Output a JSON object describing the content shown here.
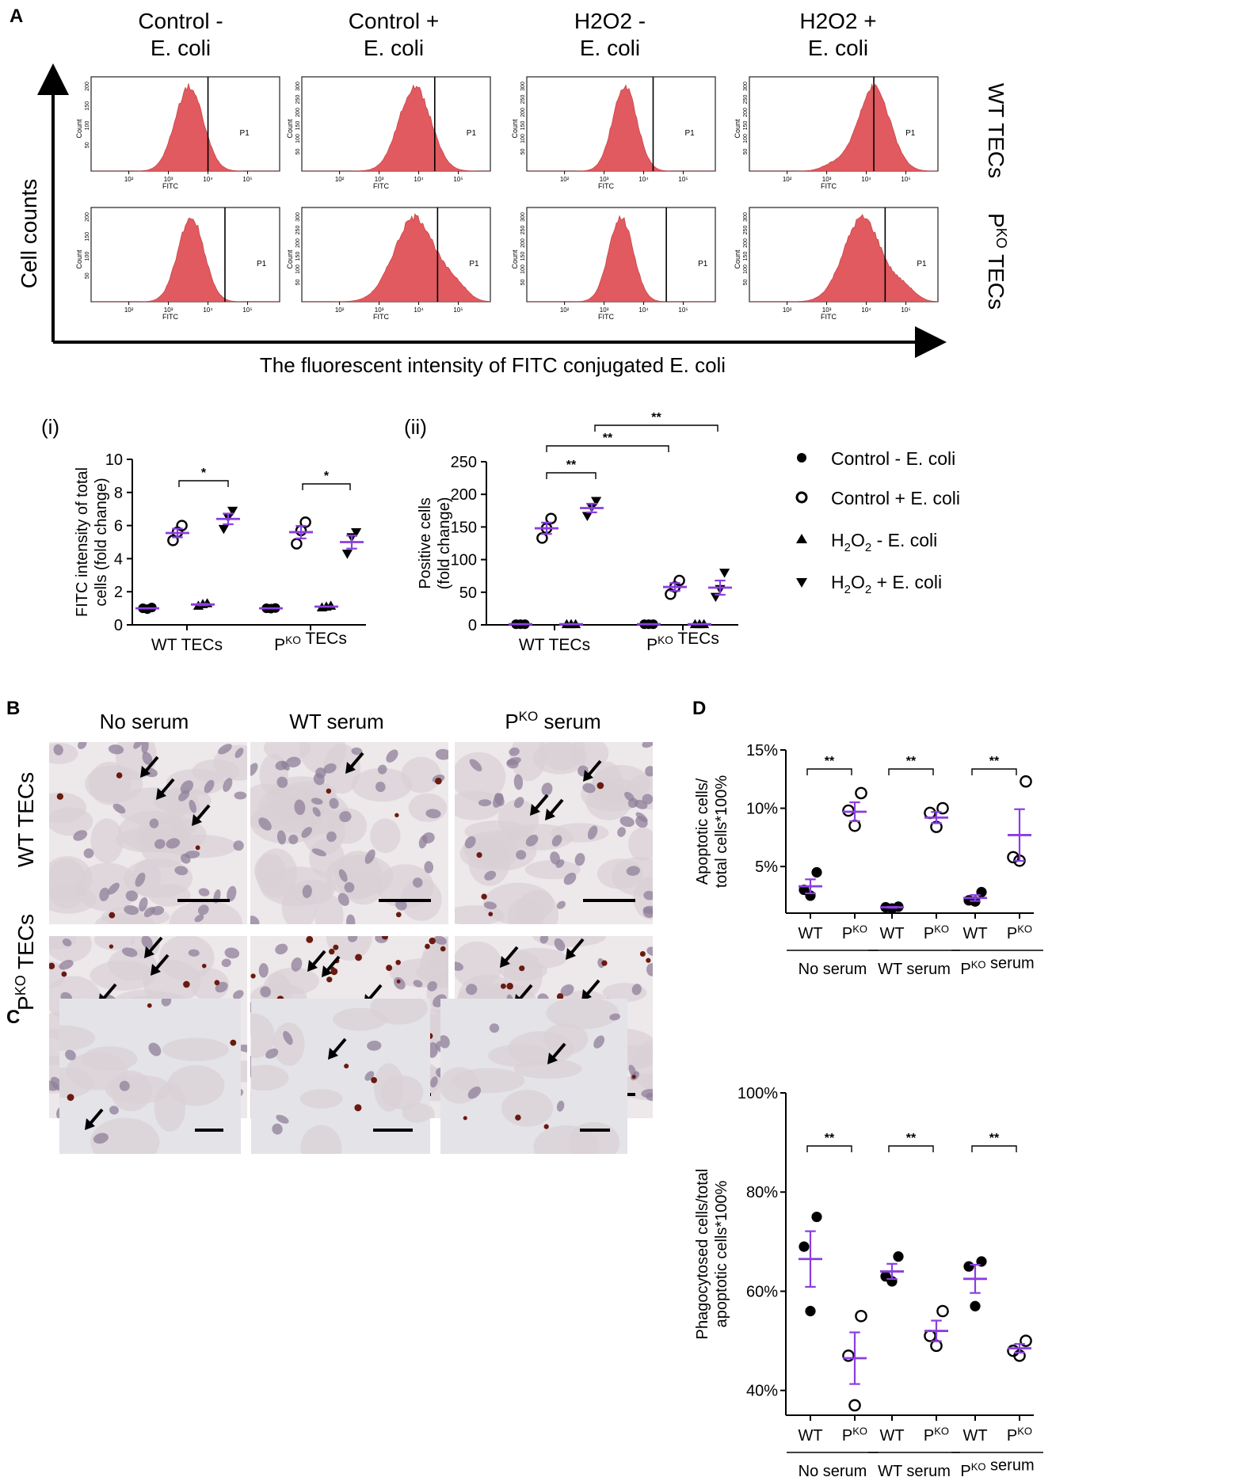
{
  "panel_letters": {
    "a": "A",
    "b": "B",
    "c": "C",
    "d": "D"
  },
  "panelA": {
    "column_headers": [
      [
        "Control -",
        "E. coli"
      ],
      [
        "Control +",
        "E. coli"
      ],
      [
        "H2O2 -",
        "E. coli"
      ],
      [
        "H2O2 +",
        "E. coli"
      ]
    ],
    "row_labels": [
      "WT TECs",
      "PKO TECs"
    ],
    "y_axis_label": "Cell counts",
    "x_axis_label": "The fluorescent intensity of FITC conjugated E. coli",
    "histogram_x_label": "FITC",
    "histogram_y_label": "Count",
    "gate_label": "P1",
    "x_ticks": [
      "10²",
      "10³",
      "10⁴",
      "10⁵"
    ]
  },
  "chart_data": [
    {
      "id": "i",
      "type": "scatter",
      "label": "(i)",
      "ylabel": "FITC intensity of total cells (fold change)",
      "ylim": [
        0,
        10
      ],
      "yticks": [
        "0",
        "2",
        "4",
        "6",
        "8",
        "10"
      ],
      "categories": [
        "WT TECs",
        "PKO TECs"
      ],
      "series": [
        {
          "name": "Control - E. coli",
          "marker": "filled-circle",
          "values": [
            [
              1.0,
              0.95,
              1.05
            ],
            [
              1.0,
              0.98,
              1.02
            ]
          ],
          "mean": [
            1.0,
            1.0
          ]
        },
        {
          "name": "Control + E. coli",
          "marker": "open-circle",
          "values": [
            [
              5.1,
              5.6,
              6.0
            ],
            [
              4.9,
              5.7,
              6.2
            ]
          ],
          "mean": [
            5.55,
            5.6
          ]
        },
        {
          "name": "H2O2 - E. coli",
          "marker": "triangle-up",
          "values": [
            [
              1.15,
              1.25,
              1.3
            ],
            [
              1.05,
              1.1,
              1.15
            ]
          ],
          "mean": [
            1.23,
            1.1
          ]
        },
        {
          "name": "H2O2 + E. coli",
          "marker": "triangle-down",
          "values": [
            [
              5.8,
              6.5,
              6.9
            ],
            [
              4.3,
              5.3,
              5.6
            ]
          ],
          "mean": [
            6.4,
            5.0
          ]
        }
      ],
      "significance": [
        {
          "text": "*",
          "between": "Control + vs H2O2 + (WT)"
        },
        {
          "text": "*",
          "between": "Control + vs H2O2 + (PKO)"
        }
      ]
    },
    {
      "id": "ii",
      "type": "scatter",
      "label": "(ii)",
      "ylabel": "Positive cells (fold change)",
      "ylim": [
        0,
        250
      ],
      "yticks": [
        "0",
        "50",
        "100",
        "150",
        "200",
        "250"
      ],
      "categories": [
        "WT TECs",
        "PKO TECs"
      ],
      "series": [
        {
          "name": "Control - E. coli",
          "marker": "filled-circle",
          "values": [
            [
              1,
              1,
              1
            ],
            [
              1,
              1,
              1
            ]
          ],
          "mean": [
            1,
            1
          ]
        },
        {
          "name": "Control + E. coli",
          "marker": "open-circle",
          "values": [
            [
              133,
              148,
              163
            ],
            [
              47,
              58,
              68
            ]
          ],
          "mean": [
            148,
            58
          ]
        },
        {
          "name": "H2O2 - E. coli",
          "marker": "triangle-up",
          "values": [
            [
              1,
              1,
              1
            ],
            [
              1,
              1,
              1
            ]
          ],
          "mean": [
            1,
            1
          ]
        },
        {
          "name": "H2O2 + E. coli",
          "marker": "triangle-down",
          "values": [
            [
              167,
              180,
              190
            ],
            [
              43,
              55,
              80
            ]
          ],
          "mean": [
            179,
            57
          ]
        }
      ],
      "significance": [
        {
          "text": "**",
          "between": "Control + vs H2O2 + (WT)"
        },
        {
          "text": "**",
          "between": "WT Control + vs PKO Control +"
        },
        {
          "text": "**",
          "between": "WT H2O2 + vs PKO H2O2 +"
        }
      ]
    },
    {
      "id": "D-top",
      "type": "scatter",
      "ylabel": "Apoptotic cells/ total cells*100%",
      "ylim": [
        1,
        15
      ],
      "yticks": [
        "5%",
        "10%",
        "15%"
      ],
      "groups": [
        "No serum",
        "WT serum",
        "PKO serum"
      ],
      "subcategories": [
        "WT",
        "PKO"
      ],
      "points": [
        {
          "group": "No serum",
          "sub": "WT",
          "values": [
            2.5,
            3.0,
            4.5
          ],
          "mean": 3.3
        },
        {
          "group": "No serum",
          "sub": "PKO",
          "values": [
            8.5,
            9.8,
            11.3
          ],
          "mean": 9.7
        },
        {
          "group": "WT serum",
          "sub": "WT",
          "values": [
            1.4,
            1.5,
            1.55
          ],
          "mean": 1.5
        },
        {
          "group": "WT serum",
          "sub": "PKO",
          "values": [
            8.4,
            9.6,
            10.0
          ],
          "mean": 9.2
        },
        {
          "group": "PKO serum",
          "sub": "WT",
          "values": [
            2.0,
            2.1,
            2.8
          ],
          "mean": 2.3
        },
        {
          "group": "PKO serum",
          "sub": "PKO",
          "values": [
            5.5,
            5.8,
            12.3
          ],
          "mean": 7.7
        }
      ],
      "significance": [
        "**",
        "**",
        "**"
      ]
    },
    {
      "id": "D-bottom",
      "type": "scatter",
      "ylabel": "Phagocytosed cells/total apoptotic cells*100%",
      "ylim": [
        35,
        100
      ],
      "yticks": [
        "40%",
        "60%",
        "80%",
        "100%"
      ],
      "groups": [
        "No serum",
        "WT serum",
        "PKO serum"
      ],
      "subcategories": [
        "WT",
        "PKO"
      ],
      "points": [
        {
          "group": "No serum",
          "sub": "WT",
          "values": [
            56,
            69,
            75
          ],
          "mean": 66.5
        },
        {
          "group": "No serum",
          "sub": "PKO",
          "values": [
            37,
            47,
            55
          ],
          "mean": 46.5
        },
        {
          "group": "WT serum",
          "sub": "WT",
          "values": [
            62,
            63,
            67
          ],
          "mean": 64
        },
        {
          "group": "WT serum",
          "sub": "PKO",
          "values": [
            49,
            51,
            56
          ],
          "mean": 52
        },
        {
          "group": "PKO serum",
          "sub": "WT",
          "values": [
            57,
            65,
            66
          ],
          "mean": 62.5
        },
        {
          "group": "PKO serum",
          "sub": "PKO",
          "values": [
            47,
            48,
            50
          ],
          "mean": 48.5
        }
      ],
      "significance": [
        "**",
        "**",
        "**"
      ]
    }
  ],
  "legend": [
    "Control - E. coli",
    "Control + E. coli",
    "H2O2 - E. coli",
    "H2O2 + E. coli"
  ],
  "panelB": {
    "column_headers": [
      "No serum",
      "WT serum",
      "PKO serum"
    ],
    "row_labels": [
      "WT TECs",
      "PKO TECs"
    ]
  },
  "colors": {
    "histogram": "#e05a5f",
    "mean_bar": "#8a3ee0",
    "tissue_bg": "#ede8ea",
    "tissue_cyto": "#d9d0d6",
    "nucleus": "#8f7f9a",
    "stain": "#6a1a10"
  }
}
